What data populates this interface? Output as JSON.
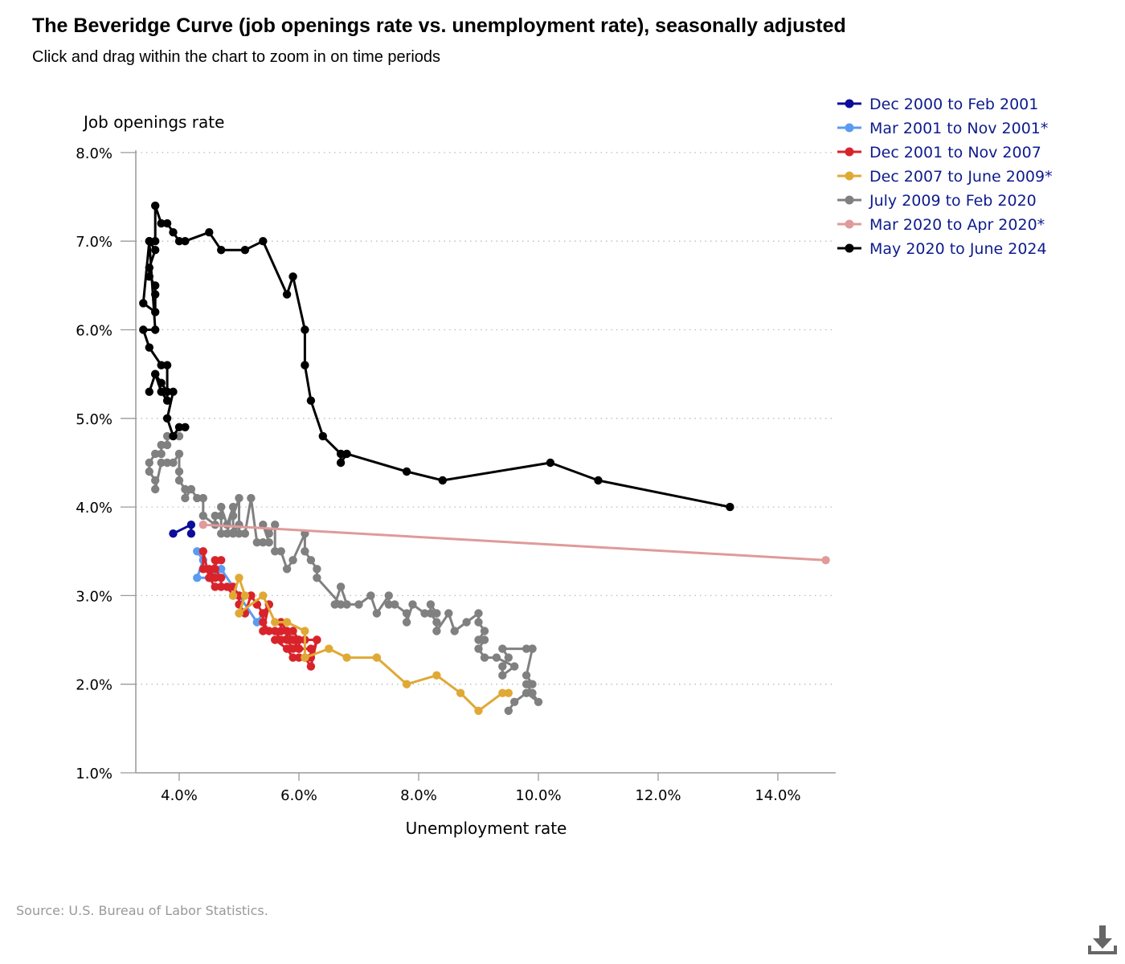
{
  "header": {
    "title": "The Beveridge Curve (job openings rate vs. unemployment rate), seasonally adjusted",
    "subtitle": "Click and drag within the chart to zoom in on time periods"
  },
  "footer": {
    "source": "Source: U.S. Bureau of Labor Statistics.",
    "download_icon": "download-icon"
  },
  "colors": {
    "background": "#ffffff",
    "gridline": "#bbbbbb",
    "axis": "#999999",
    "legend_text": "#0d1b8c"
  },
  "chart_data": {
    "type": "line",
    "xlabel": "Unemployment rate",
    "ylabel": "Job openings rate",
    "xlim": [
      3.1,
      15.0
    ],
    "ylim": [
      1.0,
      8.0
    ],
    "xticks": [
      4,
      6,
      8,
      10,
      12,
      14
    ],
    "xtick_labels": [
      "4.0%",
      "6.0%",
      "8.0%",
      "10.0%",
      "12.0%",
      "14.0%"
    ],
    "yticks": [
      1,
      2,
      3,
      4,
      5,
      6,
      7,
      8
    ],
    "ytick_labels": [
      "1.0%",
      "2.0%",
      "3.0%",
      "4.0%",
      "5.0%",
      "6.0%",
      "7.0%",
      "8.0%"
    ],
    "grid": "horizontal dotted",
    "legend_position": "top-right",
    "series": [
      {
        "name": "Dec 2000 to Feb 2001",
        "color": "#0d0d99",
        "points": [
          [
            3.9,
            3.7
          ],
          [
            4.2,
            3.8
          ],
          [
            4.2,
            3.7
          ]
        ]
      },
      {
        "name": "Mar 2001 to Nov 2001*",
        "color": "#5b9bf2",
        "points": [
          [
            4.3,
            3.5
          ],
          [
            4.4,
            3.4
          ],
          [
            4.3,
            3.2
          ],
          [
            4.5,
            3.2
          ],
          [
            4.7,
            3.3
          ],
          [
            5.0,
            3.0
          ],
          [
            5.3,
            2.7
          ],
          [
            5.5,
            2.9
          ]
        ]
      },
      {
        "name": "Dec 2001 to Nov 2007",
        "color": "#d8232a",
        "points": [
          [
            5.7,
            2.6
          ],
          [
            5.7,
            2.7
          ],
          [
            5.9,
            2.5
          ],
          [
            6.0,
            2.4
          ],
          [
            5.9,
            2.5
          ],
          [
            5.8,
            2.6
          ],
          [
            5.8,
            2.5
          ],
          [
            5.9,
            2.4
          ],
          [
            6.0,
            2.5
          ],
          [
            6.1,
            2.5
          ],
          [
            6.3,
            2.5
          ],
          [
            6.2,
            2.2
          ],
          [
            6.1,
            2.3
          ],
          [
            6.0,
            2.3
          ],
          [
            5.9,
            2.3
          ],
          [
            5.8,
            2.4
          ],
          [
            5.6,
            2.5
          ],
          [
            5.7,
            2.6
          ],
          [
            5.5,
            2.6
          ],
          [
            5.4,
            2.7
          ],
          [
            5.4,
            2.8
          ],
          [
            5.3,
            2.9
          ],
          [
            5.2,
            3.0
          ],
          [
            5.1,
            2.8
          ],
          [
            5.0,
            2.9
          ],
          [
            5.0,
            3.0
          ],
          [
            4.9,
            3.1
          ],
          [
            4.7,
            3.1
          ],
          [
            4.7,
            3.2
          ],
          [
            4.6,
            3.3
          ],
          [
            4.6,
            3.4
          ],
          [
            4.7,
            3.4
          ],
          [
            4.5,
            3.3
          ],
          [
            4.6,
            3.2
          ],
          [
            4.4,
            3.3
          ],
          [
            4.4,
            3.5
          ],
          [
            4.5,
            3.2
          ],
          [
            4.6,
            3.1
          ],
          [
            4.8,
            3.1
          ],
          [
            4.9,
            3.0
          ],
          [
            5.0,
            3.0
          ],
          [
            5.2,
            3.0
          ],
          [
            5.3,
            2.9
          ],
          [
            5.4,
            2.8
          ],
          [
            5.5,
            2.9
          ],
          [
            5.4,
            2.6
          ],
          [
            5.6,
            2.6
          ],
          [
            5.7,
            2.5
          ],
          [
            5.9,
            2.6
          ],
          [
            6.0,
            2.5
          ],
          [
            6.0,
            2.4
          ],
          [
            6.2,
            2.4
          ],
          [
            6.2,
            2.3
          ],
          [
            6.3,
            2.5
          ]
        ]
      },
      {
        "name": "Dec 2007 to June 2009*",
        "color": "#e0a935",
        "points": [
          [
            4.9,
            3.0
          ],
          [
            5.0,
            3.2
          ],
          [
            5.1,
            3.0
          ],
          [
            5.0,
            2.8
          ],
          [
            5.4,
            3.0
          ],
          [
            5.6,
            2.7
          ],
          [
            5.8,
            2.7
          ],
          [
            6.1,
            2.6
          ],
          [
            6.1,
            2.3
          ],
          [
            6.5,
            2.4
          ],
          [
            6.8,
            2.3
          ],
          [
            7.3,
            2.3
          ],
          [
            7.8,
            2.0
          ],
          [
            8.3,
            2.1
          ],
          [
            8.7,
            1.9
          ],
          [
            9.0,
            1.7
          ],
          [
            9.4,
            1.9
          ],
          [
            9.5,
            1.9
          ]
        ]
      },
      {
        "name": "July 2009 to Feb 2020",
        "color": "#808080",
        "points": [
          [
            9.5,
            1.7
          ],
          [
            9.6,
            1.8
          ],
          [
            9.8,
            1.9
          ],
          [
            10.0,
            1.8
          ],
          [
            9.9,
            1.9
          ],
          [
            9.8,
            2.0
          ],
          [
            9.9,
            2.0
          ],
          [
            9.8,
            2.1
          ],
          [
            9.9,
            2.4
          ],
          [
            9.8,
            2.4
          ],
          [
            9.9,
            2.4
          ],
          [
            9.4,
            2.4
          ],
          [
            9.5,
            2.3
          ],
          [
            9.4,
            2.2
          ],
          [
            9.4,
            2.1
          ],
          [
            9.6,
            2.2
          ],
          [
            9.3,
            2.3
          ],
          [
            9.1,
            2.3
          ],
          [
            9.0,
            2.4
          ],
          [
            9.1,
            2.5
          ],
          [
            9.0,
            2.5
          ],
          [
            9.1,
            2.6
          ],
          [
            9.0,
            2.7
          ],
          [
            9.0,
            2.8
          ],
          [
            8.8,
            2.7
          ],
          [
            8.6,
            2.6
          ],
          [
            8.5,
            2.8
          ],
          [
            8.3,
            2.6
          ],
          [
            8.3,
            2.7
          ],
          [
            8.2,
            2.8
          ],
          [
            8.2,
            2.9
          ],
          [
            8.3,
            2.8
          ],
          [
            8.1,
            2.8
          ],
          [
            7.9,
            2.9
          ],
          [
            7.8,
            2.7
          ],
          [
            7.8,
            2.8
          ],
          [
            7.6,
            2.9
          ],
          [
            7.5,
            2.9
          ],
          [
            7.5,
            3.0
          ],
          [
            7.3,
            2.8
          ],
          [
            7.2,
            3.0
          ],
          [
            7.0,
            2.9
          ],
          [
            6.8,
            2.9
          ],
          [
            6.7,
            3.1
          ],
          [
            6.6,
            2.9
          ],
          [
            6.7,
            2.9
          ],
          [
            6.3,
            3.2
          ],
          [
            6.3,
            3.3
          ],
          [
            6.2,
            3.4
          ],
          [
            6.1,
            3.5
          ],
          [
            6.1,
            3.7
          ],
          [
            5.9,
            3.4
          ],
          [
            5.8,
            3.3
          ],
          [
            5.7,
            3.5
          ],
          [
            5.6,
            3.5
          ],
          [
            5.6,
            3.8
          ],
          [
            5.5,
            3.7
          ],
          [
            5.4,
            3.8
          ],
          [
            5.5,
            3.6
          ],
          [
            5.4,
            3.6
          ],
          [
            5.3,
            3.6
          ],
          [
            5.2,
            4.1
          ],
          [
            5.1,
            3.7
          ],
          [
            5.0,
            3.7
          ],
          [
            5.0,
            4.1
          ],
          [
            4.9,
            3.9
          ],
          [
            4.9,
            3.7
          ],
          [
            5.0,
            3.8
          ],
          [
            4.8,
            3.7
          ],
          [
            4.9,
            4.0
          ],
          [
            4.8,
            3.8
          ],
          [
            4.7,
            4.0
          ],
          [
            4.7,
            3.7
          ],
          [
            4.7,
            3.9
          ],
          [
            4.6,
            3.9
          ],
          [
            4.6,
            3.8
          ],
          [
            4.4,
            3.9
          ],
          [
            4.4,
            4.1
          ],
          [
            4.3,
            4.1
          ],
          [
            4.2,
            4.2
          ],
          [
            4.1,
            4.1
          ],
          [
            4.1,
            4.2
          ],
          [
            4.0,
            4.3
          ],
          [
            4.0,
            4.4
          ],
          [
            4.0,
            4.6
          ],
          [
            3.9,
            4.5
          ],
          [
            3.8,
            4.5
          ],
          [
            3.7,
            4.5
          ],
          [
            3.6,
            4.2
          ],
          [
            3.6,
            4.3
          ],
          [
            3.5,
            4.4
          ],
          [
            3.5,
            4.5
          ],
          [
            3.6,
            4.6
          ],
          [
            3.7,
            4.6
          ],
          [
            3.7,
            4.7
          ],
          [
            3.8,
            4.7
          ],
          [
            3.8,
            4.8
          ],
          [
            4.0,
            4.8
          ]
        ]
      },
      {
        "name": "Mar 2020 to Apr 2020*",
        "color": "#e09a9a",
        "points": [
          [
            4.4,
            3.8
          ],
          [
            14.8,
            3.4
          ]
        ]
      },
      {
        "name": "May 2020 to June 2024",
        "color": "#000000",
        "points": [
          [
            13.2,
            4.0
          ],
          [
            11.0,
            4.3
          ],
          [
            10.2,
            4.5
          ],
          [
            8.4,
            4.3
          ],
          [
            7.8,
            4.4
          ],
          [
            6.8,
            4.6
          ],
          [
            6.7,
            4.5
          ],
          [
            6.7,
            4.6
          ],
          [
            6.4,
            4.8
          ],
          [
            6.2,
            5.2
          ],
          [
            6.1,
            5.6
          ],
          [
            6.1,
            6.0
          ],
          [
            5.9,
            6.6
          ],
          [
            5.8,
            6.4
          ],
          [
            5.4,
            7.0
          ],
          [
            5.1,
            6.9
          ],
          [
            4.7,
            6.9
          ],
          [
            4.5,
            7.1
          ],
          [
            4.1,
            7.0
          ],
          [
            4.0,
            7.0
          ],
          [
            3.9,
            7.1
          ],
          [
            3.8,
            7.2
          ],
          [
            3.7,
            7.2
          ],
          [
            3.6,
            7.4
          ],
          [
            3.6,
            7.0
          ],
          [
            3.5,
            7.0
          ],
          [
            3.6,
            6.9
          ],
          [
            3.5,
            6.7
          ],
          [
            3.5,
            6.6
          ],
          [
            3.6,
            6.5
          ],
          [
            3.6,
            6.4
          ],
          [
            3.6,
            6.2
          ],
          [
            3.4,
            6.3
          ],
          [
            3.5,
            7.0
          ],
          [
            3.6,
            6.0
          ],
          [
            3.4,
            6.0
          ],
          [
            3.5,
            5.8
          ],
          [
            3.7,
            5.6
          ],
          [
            3.8,
            5.6
          ],
          [
            3.8,
            5.2
          ],
          [
            3.7,
            5.3
          ],
          [
            3.6,
            5.5
          ],
          [
            3.5,
            5.3
          ],
          [
            3.6,
            5.5
          ],
          [
            3.7,
            5.4
          ],
          [
            3.8,
            5.3
          ],
          [
            3.9,
            5.3
          ],
          [
            3.8,
            5.0
          ],
          [
            3.9,
            4.8
          ],
          [
            4.0,
            4.9
          ],
          [
            4.1,
            4.9
          ]
        ]
      }
    ]
  }
}
